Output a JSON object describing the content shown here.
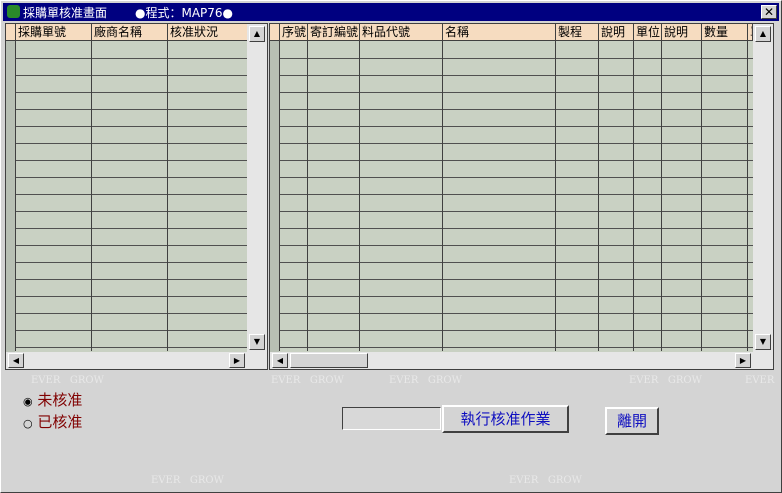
{
  "window": {
    "title": "採購單核准畫面",
    "program": "●程式：MAP76●"
  },
  "left_grid": {
    "headers": [
      "採購單號",
      "廠商名稱",
      "核准狀況"
    ]
  },
  "right_grid": {
    "headers": [
      "序號",
      "寄訂編號",
      "料品代號",
      "名稱",
      "製程",
      "說明",
      "單位",
      "說明",
      "數量",
      "單"
    ]
  },
  "radio_options": [
    "未核准",
    "已核准"
  ],
  "buttons": {
    "execute": "執行核准作業",
    "leave": "離開"
  },
  "watermark": "EVER   GROW"
}
